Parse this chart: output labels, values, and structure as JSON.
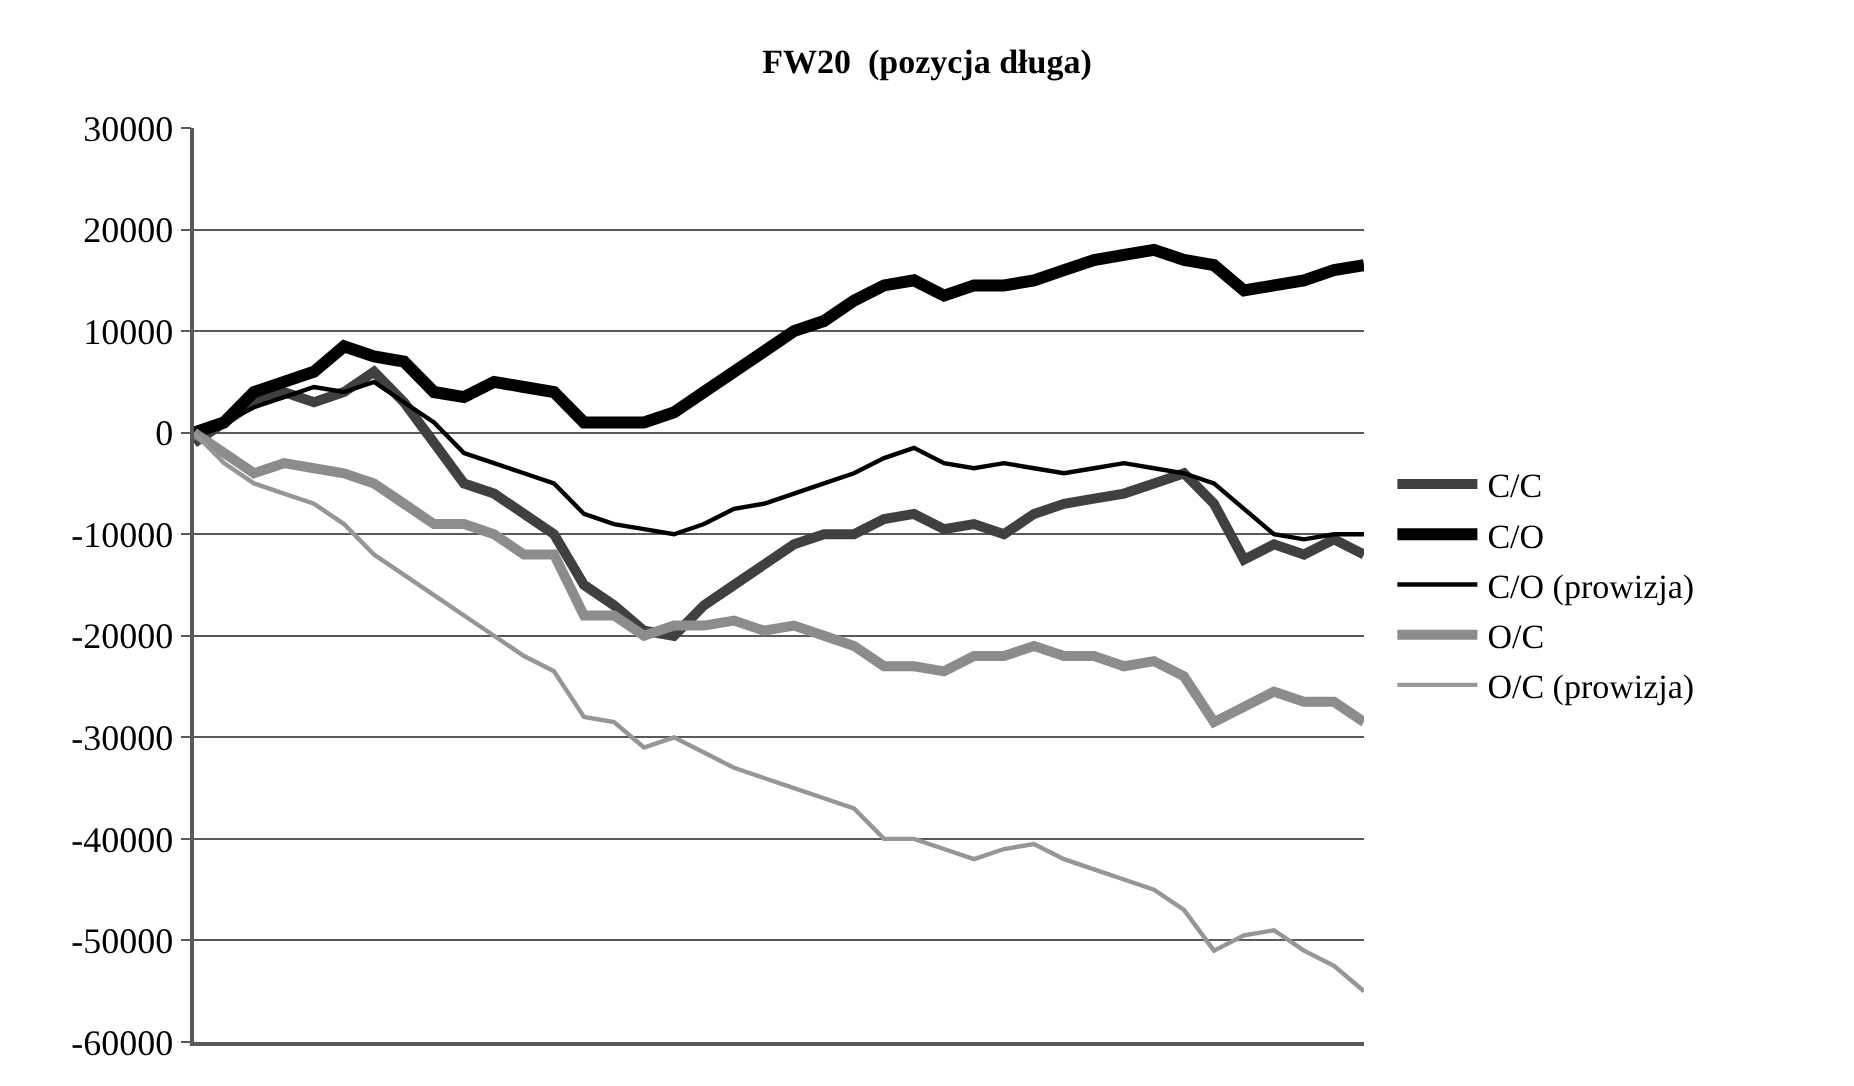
{
  "chart_data": {
    "type": "line",
    "title": "FW20  (pozycja długa)",
    "categories": [
      null,
      null,
      null,
      null,
      null,
      null,
      null,
      null,
      null,
      null,
      null,
      null,
      null,
      null,
      null,
      null,
      null,
      null,
      null,
      null,
      null,
      null,
      null,
      null,
      null,
      null,
      null,
      null,
      null,
      null,
      null,
      null,
      null,
      null,
      null,
      null,
      null,
      null,
      null,
      null
    ],
    "series": [
      {
        "name": "C/C",
        "color": "#404040",
        "values": [
          -1000,
          1000,
          3000,
          4000,
          3000,
          4000,
          6000,
          3000,
          -1000,
          -5000,
          -6000,
          -8000,
          -10000,
          -15000,
          -17000,
          -19500,
          -20000,
          -17000,
          -15000,
          -13000,
          -11000,
          -10000,
          -10000,
          -8500,
          -8000,
          -9500,
          -9000,
          -10000,
          -8000,
          -7000,
          -6500,
          -6000,
          -5000,
          -4000,
          -7000,
          -12500,
          -11000,
          -12000,
          -10500,
          -12000
        ]
      },
      {
        "name": "C/O",
        "color": "#000000",
        "values": [
          0,
          1000,
          4000,
          5000,
          6000,
          8500,
          7500,
          7000,
          4000,
          3500,
          5000,
          4500,
          4000,
          1000,
          1000,
          1000,
          2000,
          4000,
          6000,
          8000,
          10000,
          11000,
          13000,
          14500,
          15000,
          13500,
          14500,
          14500,
          15000,
          16000,
          17000,
          17500,
          18000,
          17000,
          16500,
          14000,
          14500,
          15000,
          16000,
          16500
        ]
      },
      {
        "name": "C/O (prowizja)",
        "color": "#000000",
        "values": [
          0,
          1000,
          2500,
          3500,
          4500,
          4000,
          5000,
          3000,
          1000,
          -2000,
          -3000,
          -4000,
          -5000,
          -8000,
          -9000,
          -9500,
          -10000,
          -9000,
          -7500,
          -7000,
          -6000,
          -5000,
          -4000,
          -2500,
          -1500,
          -3000,
          -3500,
          -3000,
          -3500,
          -4000,
          -3500,
          -3000,
          -3500,
          -4000,
          -5000,
          -7500,
          -10000,
          -10500,
          -10000,
          -10000
        ]
      },
      {
        "name": "O/C",
        "color": "#8c8c8c",
        "values": [
          0,
          -2000,
          -4000,
          -3000,
          -3500,
          -4000,
          -5000,
          -7000,
          -9000,
          -9000,
          -10000,
          -12000,
          -12000,
          -18000,
          -18000,
          -20000,
          -19000,
          -19000,
          -18500,
          -19500,
          -19000,
          -20000,
          -21000,
          -23000,
          -23000,
          -23500,
          -22000,
          -22000,
          -21000,
          -22000,
          -22000,
          -23000,
          -22500,
          -24000,
          -28500,
          -27000,
          -25500,
          -26500,
          -26500,
          -28500
        ]
      },
      {
        "name": "O/C (prowizja)",
        "color": "#969696",
        "values": [
          0,
          -3000,
          -5000,
          -6000,
          -7000,
          -9000,
          -12000,
          -14000,
          -16000,
          -18000,
          -20000,
          -22000,
          -23500,
          -28000,
          -28500,
          -31000,
          -30000,
          -31500,
          -33000,
          -34000,
          -35000,
          -36000,
          -37000,
          -40000,
          -40000,
          -41000,
          -42000,
          -41000,
          -40500,
          -42000,
          -43000,
          -44000,
          -45000,
          -47000,
          -51000,
          -49500,
          -49000,
          -51000,
          -52500,
          -55000
        ]
      }
    ],
    "ylim": [
      -60000,
      30000
    ],
    "yticks": [
      -60000,
      -50000,
      -40000,
      -30000,
      -20000,
      -10000,
      0,
      10000,
      20000,
      30000
    ],
    "grid": "y",
    "legend": "right",
    "tick_labels": "y"
  }
}
